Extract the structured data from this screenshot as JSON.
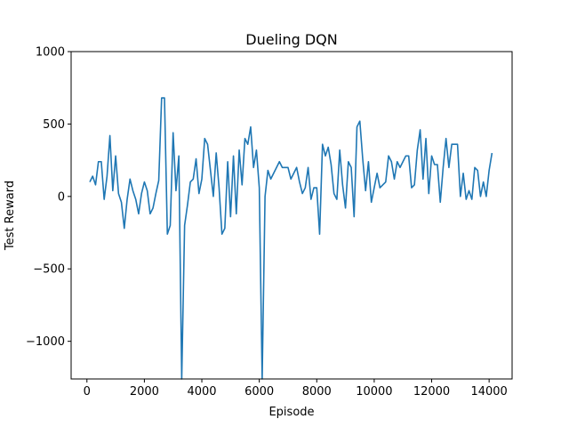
{
  "chart_data": {
    "type": "line",
    "title": "Dueling DQN",
    "xlabel": "Episode",
    "ylabel": "Test Reward",
    "xlim": [
      -550,
      14800
    ],
    "ylim": [
      -1260,
      1000
    ],
    "xticks": [
      0,
      2000,
      4000,
      6000,
      8000,
      10000,
      12000,
      14000
    ],
    "xtick_labels": [
      "0",
      "2000",
      "4000",
      "6000",
      "8000",
      "10000",
      "12000",
      "14000"
    ],
    "yticks": [
      -1000,
      -500,
      0,
      500,
      1000
    ],
    "ytick_labels": [
      "−1000",
      "−500",
      "0",
      "500",
      "1000"
    ],
    "grid": false,
    "series_color": "#1f77b4",
    "series": [
      {
        "x": [
          100,
          200,
          300,
          400,
          500,
          600,
          700,
          800,
          900,
          1000,
          1100,
          1200,
          1300,
          1400,
          1500,
          1600,
          1700,
          1800,
          1900,
          2000,
          2100,
          2200,
          2300,
          2400,
          2500,
          2600,
          2700,
          2800,
          2900,
          3000,
          3100,
          3200,
          3300,
          3400,
          3500,
          3600,
          3700,
          3800,
          3900,
          4000,
          4100,
          4200,
          4300,
          4400,
          4500,
          4600,
          4700,
          4800,
          4900,
          5000,
          5100,
          5200,
          5300,
          5400,
          5500,
          5600,
          5700,
          5800,
          5900,
          6000,
          6100,
          6200,
          6300,
          6400,
          6500,
          6600,
          6700,
          6800,
          6900,
          7000,
          7100,
          7200,
          7300,
          7400,
          7500,
          7600,
          7700,
          7800,
          7900,
          8000,
          8100,
          8200,
          8300,
          8400,
          8500,
          8600,
          8700,
          8800,
          8900,
          9000,
          9100,
          9200,
          9300,
          9400,
          9500,
          9600,
          9700,
          9800,
          9900,
          10000,
          10100,
          10200,
          10300,
          10400,
          10500,
          10600,
          10700,
          10800,
          10900,
          11000,
          11100,
          11200,
          11300,
          11400,
          11500,
          11600,
          11700,
          11800,
          11900,
          12000,
          12100,
          12200,
          12300,
          12400,
          12500,
          12600,
          12700,
          12800,
          12900,
          13000,
          13100,
          13200,
          13300,
          13400,
          13500,
          13600,
          13700,
          13800,
          13900,
          14000,
          14100
        ],
        "y": [
          100,
          140,
          80,
          240,
          240,
          -20,
          140,
          420,
          40,
          280,
          20,
          -40,
          -220,
          -20,
          120,
          40,
          -20,
          -120,
          20,
          100,
          40,
          -120,
          -80,
          20,
          110,
          680,
          680,
          -260,
          -200,
          440,
          40,
          280,
          -1260,
          -200,
          -60,
          100,
          120,
          260,
          20,
          120,
          400,
          360,
          180,
          0,
          300,
          60,
          -260,
          -220,
          240,
          -140,
          280,
          -120,
          320,
          80,
          400,
          360,
          480,
          200,
          320,
          60,
          -1260,
          0,
          180,
          120,
          160,
          200,
          240,
          200,
          200,
          200,
          120,
          160,
          200,
          100,
          20,
          60,
          200,
          -20,
          60,
          60,
          -260,
          360,
          280,
          340,
          220,
          20,
          -20,
          320,
          80,
          -80,
          240,
          200,
          -140,
          480,
          520,
          260,
          40,
          240,
          -40,
          60,
          160,
          60,
          80,
          100,
          280,
          240,
          120,
          240,
          200,
          240,
          280,
          280,
          60,
          80,
          320,
          460,
          120,
          400,
          20,
          280,
          220,
          220,
          -40,
          200,
          400,
          200,
          360,
          360,
          360,
          0,
          160,
          -20,
          40,
          -20,
          200,
          180,
          0,
          100,
          0,
          180,
          300
        ]
      }
    ]
  }
}
